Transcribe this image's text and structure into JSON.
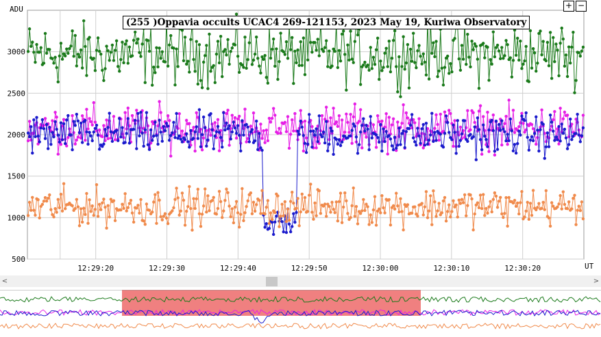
{
  "chart_data": {
    "type": "scatter",
    "title": "(255 )Oppavia occults UCAC4 269-121153, 2023 May 19, Kuriwa Observatory",
    "ylabel": "ADU",
    "xlabel": "UT",
    "ylim": [
      500,
      3500
    ],
    "yticks": [
      500,
      1000,
      1500,
      2000,
      2500,
      3000
    ],
    "xrange_seconds": [
      "12:29:10.4",
      "12:30:28.6"
    ],
    "xticks": [
      "12:29:20",
      "12:29:30",
      "12:29:40",
      "12:29:50",
      "12:30:00",
      "12:30:10",
      "12:30:20"
    ],
    "grid": true,
    "series": [
      {
        "color": "#1a7a1a",
        "mean": 2970,
        "spread": 180,
        "description_values": "comparison star ~2700–3350 ADU"
      },
      {
        "color": "#e61ee6",
        "mean": 2080,
        "spread": 130,
        "description_values": "~1800–2450 ADU"
      },
      {
        "color": "#1a1acc",
        "mean": 2000,
        "spread": 120,
        "event_start": "12:29:43.5",
        "event_end": "12:29:48.3",
        "event_level": 950
      },
      {
        "color": "#f08a4b",
        "mean": 1130,
        "spread": 110,
        "description_values": "~800–1550 ADU"
      }
    ],
    "overview": {
      "highlight_color": "#f08080",
      "highlight_range": [
        "12:29:10.4",
        "12:30:28.6"
      ]
    }
  },
  "controls": {
    "zoom_in": "+",
    "zoom_out": "−",
    "scroll_left": "<",
    "scroll_right": ">"
  }
}
